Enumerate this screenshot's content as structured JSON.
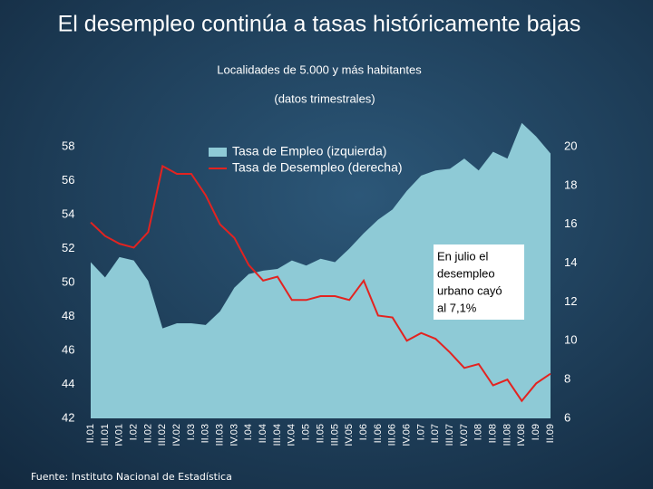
{
  "title": "El desempleo continúa a tasas históricamente bajas",
  "source": "Fuente: Instituto Nacional de Estadística",
  "chart_data": {
    "type": "area_line",
    "subtitle": [
      "Localidades de 5.000 y más habitantes",
      "(datos trimestrales)"
    ],
    "categories": [
      "II.01",
      "III.01",
      "IV.01",
      "I.02",
      "II.02",
      "III.02",
      "IV.02",
      "I.03",
      "II.03",
      "III.03",
      "IV.03",
      "I.04",
      "II.04",
      "III.04",
      "IV.04",
      "I.05",
      "II.05",
      "III.05",
      "IV.05",
      "I.06",
      "II.06",
      "III.06",
      "IV.06",
      "I.07",
      "II.07",
      "III.07",
      "IV.07",
      "I.08",
      "II.08",
      "III.08",
      "IV.08",
      "I.09",
      "II.09"
    ],
    "series": [
      {
        "name": "Tasa de Empleo  (izquierda)",
        "type": "area",
        "color": "#8ecad6",
        "values": [
          51.2,
          50.3,
          51.5,
          51.3,
          50.1,
          47.3,
          47.6,
          47.6,
          47.5,
          48.3,
          49.7,
          50.5,
          50.7,
          50.8,
          51.3,
          51.0,
          51.4,
          51.2,
          52.0,
          52.9,
          53.7,
          54.3,
          55.4,
          56.3,
          56.6,
          56.7,
          57.3,
          56.6,
          57.7,
          57.3,
          59.4,
          58.6,
          57.6
        ]
      },
      {
        "name": "Tasa de Desempleo (derecha)",
        "type": "line",
        "axis": "y2",
        "color": "#e32320",
        "values": [
          16.1,
          15.4,
          15.0,
          14.8,
          15.6,
          19.0,
          18.6,
          18.6,
          17.5,
          16.0,
          15.3,
          13.9,
          13.1,
          13.3,
          12.1,
          12.1,
          12.3,
          12.3,
          12.1,
          13.1,
          11.3,
          11.2,
          10.0,
          10.4,
          10.1,
          9.4,
          8.6,
          8.8,
          7.7,
          8.0,
          6.9,
          7.8,
          8.3
        ]
      }
    ],
    "ylim": [
      42,
      58
    ],
    "yticks": [
      42,
      44,
      46,
      48,
      50,
      52,
      54,
      56,
      58
    ],
    "y2lim": [
      6,
      20
    ],
    "y2ticks": [
      6,
      8,
      10,
      12,
      14,
      16,
      18,
      20
    ],
    "annotation": [
      "En julio el",
      "desempleo",
      "urbano cayó",
      "al 7,1%"
    ]
  }
}
